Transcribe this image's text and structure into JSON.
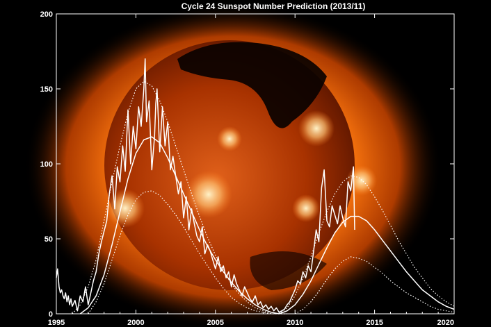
{
  "colors": {
    "background": "#000000",
    "sun_core": "#c23a00",
    "sun_corona": "#ff8a1f",
    "sun_highlight": "#ffe0a0",
    "lines": "#ffffff"
  },
  "background_image": "solar-corona-xray-sun",
  "chart_data": {
    "type": "line",
    "title": "Cycle 24 Sunspot Number Prediction (2013/11)",
    "xlabel": "",
    "ylabel": "",
    "xlim": [
      1995,
      2020
    ],
    "ylim": [
      0,
      200
    ],
    "xticks": [
      1995,
      2000,
      2005,
      2010,
      2015,
      2020
    ],
    "yticks": [
      0,
      50,
      100,
      150,
      200
    ],
    "grid": false,
    "legend": "none",
    "series": [
      {
        "role": "observed-monthly",
        "style": "solid",
        "x": [
          1995.0,
          1995.08,
          1995.17,
          1995.25,
          1995.33,
          1995.42,
          1995.5,
          1995.58,
          1995.67,
          1995.75,
          1995.83,
          1995.92,
          1996.0,
          1996.17,
          1996.33,
          1996.5,
          1996.67,
          1996.83,
          1997.0,
          1997.17,
          1997.33,
          1997.5,
          1997.67,
          1997.83,
          1998.0,
          1998.17,
          1998.33,
          1998.5,
          1998.67,
          1998.83,
          1999.0,
          1999.17,
          1999.33,
          1999.5,
          1999.67,
          1999.83,
          2000.0,
          2000.17,
          2000.33,
          2000.5,
          2000.58,
          2000.67,
          2000.83,
          2001.0,
          2001.17,
          2001.25,
          2001.33,
          2001.5,
          2001.67,
          2001.83,
          2002.0,
          2002.17,
          2002.33,
          2002.5,
          2002.67,
          2002.83,
          2003.0,
          2003.17,
          2003.33,
          2003.5,
          2003.67,
          2003.83,
          2004.0,
          2004.17,
          2004.33,
          2004.5,
          2004.67,
          2004.83,
          2005.0,
          2005.17,
          2005.33,
          2005.5,
          2005.67,
          2005.83,
          2006.0,
          2006.17,
          2006.33,
          2006.5,
          2006.67,
          2006.83,
          2007.0,
          2007.17,
          2007.33,
          2007.5,
          2007.67,
          2007.83,
          2008.0,
          2008.17,
          2008.33,
          2008.5,
          2008.67,
          2008.83,
          2009.0,
          2009.17,
          2009.33,
          2009.5,
          2009.67,
          2009.83,
          2010.0,
          2010.17,
          2010.33,
          2010.5,
          2010.67,
          2010.83,
          2011.0,
          2011.17,
          2011.33,
          2011.5,
          2011.67,
          2011.83,
          2012.0,
          2012.17,
          2012.33,
          2012.5,
          2012.67,
          2012.83,
          2013.0,
          2013.17,
          2013.33,
          2013.5,
          2013.67,
          2013.75
        ],
        "y": [
          24,
          30,
          18,
          14,
          16,
          12,
          10,
          14,
          8,
          12,
          6,
          10,
          5,
          9,
          2,
          12,
          8,
          18,
          6,
          14,
          22,
          28,
          40,
          48,
          55,
          62,
          80,
          92,
          70,
          98,
          88,
          112,
          95,
          136,
          100,
          125,
          110,
          138,
          125,
          150,
          170,
          128,
          142,
          96,
          118,
          140,
          150,
          108,
          138,
          112,
          128,
          96,
          105,
          92,
          80,
          88,
          64,
          78,
          56,
          70,
          60,
          52,
          48,
          58,
          40,
          46,
          42,
          36,
          30,
          38,
          28,
          32,
          24,
          28,
          18,
          26,
          20,
          16,
          12,
          18,
          14,
          10,
          8,
          12,
          6,
          8,
          4,
          6,
          3,
          5,
          2,
          4,
          1,
          2,
          3,
          6,
          8,
          12,
          16,
          22,
          20,
          28,
          24,
          32,
          28,
          42,
          56,
          48,
          84,
          96,
          62,
          58,
          72,
          66,
          60,
          72,
          64,
          58,
          88,
          82,
          98,
          56
        ]
      },
      {
        "role": "predicted-mean",
        "style": "solid",
        "x": [
          1996.5,
          1997.0,
          1997.5,
          1998.0,
          1998.5,
          1999.0,
          1999.5,
          2000.0,
          2000.5,
          2001.0,
          2001.5,
          2002.0,
          2002.5,
          2003.0,
          2003.5,
          2004.0,
          2004.5,
          2005.0,
          2005.5,
          2006.0,
          2006.5,
          2007.0,
          2007.5,
          2008.0,
          2008.5,
          2009.0
        ],
        "y": [
          0,
          4,
          12,
          26,
          46,
          68,
          90,
          107,
          116,
          118,
          114,
          104,
          92,
          80,
          68,
          56,
          45,
          36,
          28,
          21,
          15,
          10,
          6,
          3,
          1,
          0
        ]
      },
      {
        "role": "predicted-upper",
        "style": "dotted",
        "x": [
          1996.0,
          1996.5,
          1997.0,
          1997.5,
          1998.0,
          1998.5,
          1999.0,
          1999.5,
          2000.0,
          2000.5,
          2001.0,
          2001.5,
          2002.0,
          2002.5,
          2003.0,
          2003.5,
          2004.0,
          2004.5,
          2005.0,
          2005.5,
          2006.0,
          2006.5,
          2007.0,
          2007.5,
          2008.0,
          2008.5
        ],
        "y": [
          0,
          6,
          18,
          36,
          62,
          88,
          112,
          134,
          150,
          155,
          152,
          142,
          128,
          112,
          96,
          80,
          65,
          51,
          39,
          29,
          20,
          13,
          8,
          4,
          2,
          0
        ]
      },
      {
        "role": "predicted-lower",
        "style": "dotted",
        "x": [
          1997.0,
          1997.5,
          1998.0,
          1998.5,
          1999.0,
          1999.5,
          2000.0,
          2000.5,
          2001.0,
          2001.5,
          2002.0,
          2002.5,
          2003.0,
          2003.5,
          2004.0,
          2004.5,
          2005.0,
          2005.5,
          2006.0,
          2006.5,
          2007.0,
          2007.5,
          2008.0,
          2008.5,
          2009.0,
          2009.5
        ],
        "y": [
          0,
          8,
          20,
          36,
          52,
          66,
          76,
          81,
          82,
          79,
          73,
          66,
          58,
          49,
          40,
          32,
          24,
          17,
          11,
          7,
          4,
          2,
          1,
          0,
          0,
          0
        ]
      },
      {
        "role": "cycle24-predicted-mean",
        "style": "solid",
        "x": [
          2009.0,
          2009.5,
          2010.0,
          2010.5,
          2011.0,
          2011.5,
          2012.0,
          2012.5,
          2013.0,
          2013.5,
          2014.0,
          2014.5,
          2015.0,
          2015.5,
          2016.0,
          2016.5,
          2017.0,
          2017.5,
          2018.0,
          2018.5,
          2019.0,
          2019.5,
          2020.0
        ],
        "y": [
          0,
          2,
          6,
          13,
          22,
          33,
          44,
          54,
          61,
          65,
          65,
          62,
          56,
          49,
          42,
          35,
          28,
          22,
          16,
          12,
          8,
          5,
          3
        ]
      },
      {
        "role": "cycle24-predicted-upper",
        "style": "dotted",
        "x": [
          2009.0,
          2009.5,
          2010.0,
          2010.5,
          2011.0,
          2011.5,
          2012.0,
          2012.5,
          2013.0,
          2013.5,
          2014.0,
          2014.5,
          2015.0,
          2015.5,
          2016.0,
          2016.5,
          2017.0,
          2017.5,
          2018.0,
          2018.5,
          2019.0,
          2019.5,
          2020.0
        ],
        "y": [
          0,
          4,
          12,
          24,
          38,
          54,
          68,
          80,
          88,
          92,
          91,
          86,
          78,
          69,
          59,
          49,
          40,
          31,
          24,
          17,
          12,
          8,
          5
        ]
      },
      {
        "role": "cycle24-predicted-lower",
        "style": "dotted",
        "x": [
          2010.0,
          2010.5,
          2011.0,
          2011.5,
          2012.0,
          2012.5,
          2013.0,
          2013.5,
          2014.0,
          2014.5,
          2015.0,
          2015.5,
          2016.0,
          2016.5,
          2017.0,
          2017.5,
          2018.0,
          2018.5,
          2019.0,
          2019.5,
          2020.0
        ],
        "y": [
          0,
          3,
          8,
          15,
          23,
          30,
          35,
          38,
          37,
          35,
          31,
          27,
          22,
          18,
          14,
          11,
          8,
          5,
          3,
          2,
          1
        ]
      }
    ]
  }
}
